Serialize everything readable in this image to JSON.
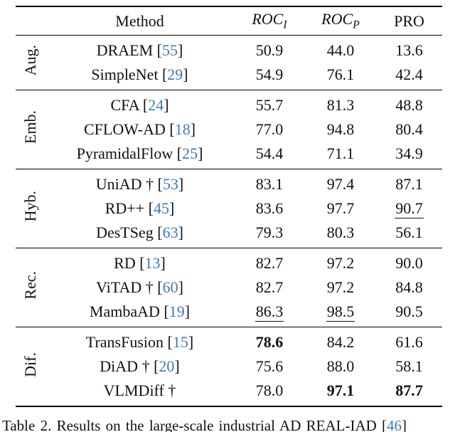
{
  "colors": {
    "citation_blue": "#3d79b8",
    "text": "#111111",
    "rule": "#000000"
  },
  "table": {
    "headers": {
      "group": "",
      "method": "Method",
      "roc_i_base": "ROC",
      "roc_i_sub": "I",
      "roc_p_base": "ROC",
      "roc_p_sub": "P",
      "pro": "PRO"
    },
    "groups": [
      {
        "label": "Aug.",
        "rows": [
          {
            "method": "DRAEM",
            "dagger": false,
            "cite": "55",
            "values": [
              {
                "t": "50.9",
                "s": ""
              },
              {
                "t": "44.0",
                "s": ""
              },
              {
                "t": "13.6",
                "s": ""
              }
            ]
          },
          {
            "method": "SimpleNet",
            "dagger": false,
            "cite": "29",
            "values": [
              {
                "t": "54.9",
                "s": ""
              },
              {
                "t": "76.1",
                "s": ""
              },
              {
                "t": "42.4",
                "s": ""
              }
            ]
          }
        ]
      },
      {
        "label": "Emb.",
        "rows": [
          {
            "method": "CFA",
            "dagger": false,
            "cite": "24",
            "values": [
              {
                "t": "55.7",
                "s": ""
              },
              {
                "t": "81.3",
                "s": ""
              },
              {
                "t": "48.8",
                "s": ""
              }
            ]
          },
          {
            "method": "CFLOW-AD",
            "dagger": false,
            "cite": "18",
            "values": [
              {
                "t": "77.0",
                "s": ""
              },
              {
                "t": "94.8",
                "s": ""
              },
              {
                "t": "80.4",
                "s": ""
              }
            ]
          },
          {
            "method": "PyramidalFlow",
            "dagger": false,
            "cite": "25",
            "values": [
              {
                "t": "54.4",
                "s": ""
              },
              {
                "t": "71.1",
                "s": ""
              },
              {
                "t": "34.9",
                "s": ""
              }
            ]
          }
        ]
      },
      {
        "label": "Hyb.",
        "rows": [
          {
            "method": "UniAD",
            "dagger": true,
            "cite": "53",
            "values": [
              {
                "t": "83.1",
                "s": ""
              },
              {
                "t": "97.4",
                "s": ""
              },
              {
                "t": "87.1",
                "s": ""
              }
            ]
          },
          {
            "method": "RD++",
            "dagger": false,
            "cite": "45",
            "values": [
              {
                "t": "83.6",
                "s": ""
              },
              {
                "t": "97.7",
                "s": ""
              },
              {
                "t": "90.7",
                "s": "underline"
              }
            ]
          },
          {
            "method": "DesTSeg",
            "dagger": false,
            "cite": "63",
            "values": [
              {
                "t": "79.3",
                "s": ""
              },
              {
                "t": "80.3",
                "s": ""
              },
              {
                "t": "56.1",
                "s": ""
              }
            ]
          }
        ]
      },
      {
        "label": "Rec.",
        "rows": [
          {
            "method": "RD",
            "dagger": false,
            "cite": "13",
            "values": [
              {
                "t": "82.7",
                "s": ""
              },
              {
                "t": "97.2",
                "s": ""
              },
              {
                "t": "90.0",
                "s": ""
              }
            ]
          },
          {
            "method": "ViTAD",
            "dagger": true,
            "cite": "60",
            "values": [
              {
                "t": "82.7",
                "s": ""
              },
              {
                "t": "97.2",
                "s": ""
              },
              {
                "t": "84.8",
                "s": ""
              }
            ]
          },
          {
            "method": "MambaAD",
            "dagger": false,
            "cite": "19",
            "values": [
              {
                "t": "86.3",
                "s": "underline"
              },
              {
                "t": "98.5",
                "s": "underline"
              },
              {
                "t": "90.5",
                "s": ""
              }
            ]
          }
        ]
      },
      {
        "label": "Dif.",
        "rows": [
          {
            "method": "TransFusion",
            "dagger": false,
            "cite": "15",
            "values": [
              {
                "t": "78.6",
                "s": "bold"
              },
              {
                "t": "84.2",
                "s": ""
              },
              {
                "t": "61.6",
                "s": ""
              }
            ]
          },
          {
            "method": "DiAD",
            "dagger": true,
            "cite": "20",
            "values": [
              {
                "t": "75.6",
                "s": ""
              },
              {
                "t": "88.0",
                "s": ""
              },
              {
                "t": "58.1",
                "s": ""
              }
            ]
          },
          {
            "method": "VLMDiff",
            "dagger": true,
            "cite": null,
            "values": [
              {
                "t": "78.0",
                "s": ""
              },
              {
                "t": "97.1",
                "s": "bold"
              },
              {
                "t": "87.7",
                "s": "bold"
              }
            ]
          }
        ]
      }
    ],
    "dagger_symbol": "†"
  },
  "caption": {
    "prefix": "Table 2. Results on the large-scale industrial AD REAL-IAD [",
    "cite": "46",
    "suffix": "]"
  }
}
